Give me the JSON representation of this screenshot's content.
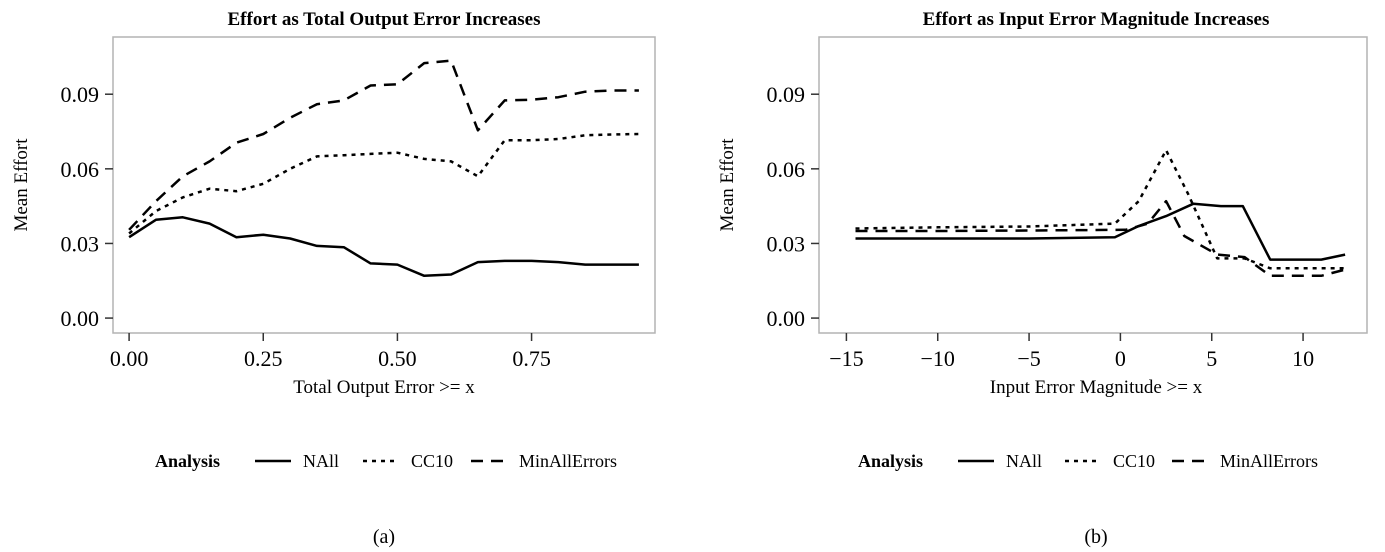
{
  "chart_data": [
    {
      "type": "line",
      "title": "Effort as Total Output Error Increases",
      "xlabel": "Total Output Error >= x",
      "ylabel": "Mean Effort",
      "xlim": [
        -0.03,
        0.98
      ],
      "ylim": [
        -0.006,
        0.113
      ],
      "xticks": [
        0,
        0.25,
        0.5,
        0.75
      ],
      "xtick_labels": [
        "0.00",
        "0.25",
        "0.50",
        "0.75"
      ],
      "yticks": [
        0,
        0.03,
        0.06,
        0.09
      ],
      "ytick_labels": [
        "0.00",
        "0.03",
        "0.06",
        "0.09"
      ],
      "grid": false,
      "legend_title": "Analysis",
      "legend_position": "bottom",
      "caption": "(a)",
      "series": [
        {
          "name": "NAll",
          "style": "solid",
          "x": [
            0,
            0.05,
            0.1,
            0.15,
            0.2,
            0.25,
            0.3,
            0.35,
            0.4,
            0.45,
            0.5,
            0.55,
            0.6,
            0.65,
            0.7,
            0.75,
            0.8,
            0.85,
            0.9,
            0.95
          ],
          "y": [
            0.0325,
            0.0395,
            0.0405,
            0.038,
            0.0325,
            0.0335,
            0.032,
            0.029,
            0.0285,
            0.022,
            0.0215,
            0.017,
            0.0175,
            0.0225,
            0.023,
            0.023,
            0.0225,
            0.0215,
            0.0215,
            0.0215
          ]
        },
        {
          "name": "CC10",
          "style": "dotted",
          "x": [
            0,
            0.05,
            0.1,
            0.15,
            0.2,
            0.25,
            0.3,
            0.35,
            0.4,
            0.45,
            0.5,
            0.55,
            0.6,
            0.65,
            0.7,
            0.75,
            0.8,
            0.85,
            0.9,
            0.95
          ],
          "y": [
            0.034,
            0.043,
            0.0485,
            0.052,
            0.051,
            0.054,
            0.06,
            0.065,
            0.0655,
            0.066,
            0.0665,
            0.064,
            0.063,
            0.057,
            0.0715,
            0.0715,
            0.072,
            0.0735,
            0.0738,
            0.074
          ]
        },
        {
          "name": "MinAllErrors",
          "style": "dashed",
          "x": [
            0,
            0.05,
            0.1,
            0.15,
            0.2,
            0.25,
            0.3,
            0.35,
            0.4,
            0.45,
            0.5,
            0.55,
            0.6,
            0.65,
            0.7,
            0.75,
            0.8,
            0.85,
            0.9,
            0.95
          ],
          "y": [
            0.0355,
            0.047,
            0.057,
            0.063,
            0.0705,
            0.074,
            0.0805,
            0.086,
            0.0875,
            0.0935,
            0.094,
            0.1025,
            0.1035,
            0.0755,
            0.0875,
            0.0878,
            0.0888,
            0.091,
            0.0915,
            0.0915
          ]
        }
      ]
    },
    {
      "type": "line",
      "title": "Effort as Input Error Magnitude Increases",
      "xlabel": "Input Error Magnitude >= x",
      "ylabel": "Mean Effort",
      "xlim": [
        -16.5,
        13.5
      ],
      "ylim": [
        -0.006,
        0.113
      ],
      "xticks": [
        -15,
        -10,
        -5,
        0,
        5,
        10
      ],
      "xtick_labels": [
        "−15",
        "−10",
        "−5",
        "0",
        "5",
        "10"
      ],
      "yticks": [
        0,
        0.03,
        0.06,
        0.09
      ],
      "ytick_labels": [
        "0.00",
        "0.03",
        "0.06",
        "0.09"
      ],
      "grid": false,
      "legend_title": "Analysis",
      "legend_position": "bottom",
      "caption": "(b)",
      "series": [
        {
          "name": "NAll",
          "style": "solid",
          "x": [
            -14.5,
            -10,
            -5,
            -0.3,
            1,
            2.5,
            4,
            5.5,
            6.7,
            8.2,
            9.5,
            11,
            12.3
          ],
          "y": [
            0.032,
            0.032,
            0.032,
            0.0325,
            0.037,
            0.041,
            0.046,
            0.045,
            0.045,
            0.0235,
            0.0235,
            0.0235,
            0.0255
          ]
        },
        {
          "name": "CC10",
          "style": "dotted",
          "x": [
            -14.5,
            -10,
            -5,
            -0.3,
            1,
            2.5,
            3.7,
            5.3,
            6.8,
            8.2,
            9.5,
            11,
            12.3
          ],
          "y": [
            0.036,
            0.0365,
            0.0368,
            0.038,
            0.047,
            0.0675,
            0.05,
            0.024,
            0.024,
            0.02,
            0.02,
            0.02,
            0.02
          ]
        },
        {
          "name": "MinAllErrors",
          "style": "dashed",
          "x": [
            -14.5,
            -10,
            -5,
            0.3,
            1.5,
            2.5,
            3.5,
            5.3,
            6.8,
            8.2,
            9.5,
            11,
            12.3
          ],
          "y": [
            0.035,
            0.035,
            0.0352,
            0.0355,
            0.038,
            0.047,
            0.033,
            0.0255,
            0.0245,
            0.017,
            0.017,
            0.017,
            0.0195
          ]
        }
      ]
    }
  ]
}
